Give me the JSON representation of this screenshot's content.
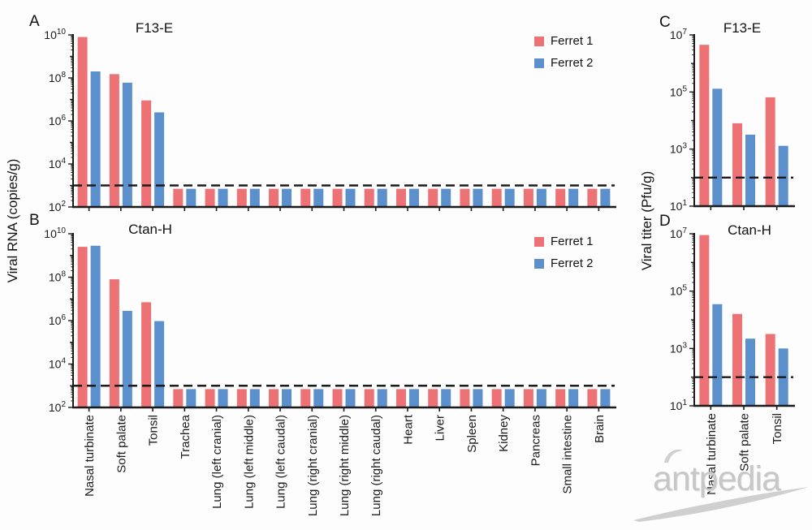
{
  "labels": {
    "y_left": "Viral RNA (copies/g)",
    "y_right": "Viral titer (Pfu/g)"
  },
  "legend": {
    "items": [
      "Ferret 1",
      "Ferret 2"
    ]
  },
  "colors": {
    "series": [
      "#ed7276",
      "#5b90cd"
    ],
    "ink": "#1b1b1b",
    "watermark": "#c7c7c7"
  },
  "watermark": {
    "text": "antpedia"
  },
  "chart_data": [
    {
      "panel": "A",
      "type": "bar",
      "title": "F13-E",
      "ylabel": "Viral RNA (copies/g)",
      "log_scale": true,
      "ylim": [
        100.0,
        10000000000.0
      ],
      "ytick_exponents": [
        2,
        4,
        6,
        8,
        10
      ],
      "detection_limit": 1000.0,
      "show_xlabels": false,
      "show_legend": true,
      "categories": [
        "Nasal turbinate",
        "Soft palate",
        "Tonsil",
        "Trachea",
        "Lung (left cranial)",
        "Lung (left middle)",
        "Lung (left caudal)",
        "Lung (right cranial)",
        "Lung (right middle)",
        "Lung (right caudal)",
        "Heart",
        "Liver",
        "Spleen",
        "Kidney",
        "Pancreas",
        "Small intestine",
        "Brain"
      ],
      "series": [
        {
          "name": "Ferret 1",
          "values": [
            8000000000.0,
            150000000.0,
            9000000.0,
            700.0,
            700.0,
            700.0,
            700.0,
            700.0,
            700.0,
            700.0,
            700.0,
            700.0,
            700.0,
            700.0,
            700.0,
            700.0,
            700.0
          ]
        },
        {
          "name": "Ferret 2",
          "values": [
            200000000.0,
            60000000.0,
            2500000.0,
            700.0,
            700.0,
            700.0,
            700.0,
            700.0,
            700.0,
            700.0,
            700.0,
            700.0,
            700.0,
            700.0,
            700.0,
            700.0,
            700.0
          ]
        }
      ]
    },
    {
      "panel": "B",
      "type": "bar",
      "title": "Ctan-H",
      "ylabel": "Viral RNA (copies/g)",
      "log_scale": true,
      "ylim": [
        100.0,
        10000000000.0
      ],
      "ytick_exponents": [
        2,
        4,
        6,
        8,
        10
      ],
      "detection_limit": 1000.0,
      "show_xlabels": true,
      "show_legend": true,
      "categories": [
        "Nasal turbinate",
        "Soft palate",
        "Tonsil",
        "Trachea",
        "Lung (left cranial)",
        "Lung (left middle)",
        "Lung (left caudal)",
        "Lung (right cranial)",
        "Lung (right middle)",
        "Lung (right caudal)",
        "Heart",
        "Liver",
        "Spleen",
        "Kidney",
        "Pancreas",
        "Small intestine",
        "Brain"
      ],
      "series": [
        {
          "name": "Ferret 1",
          "values": [
            2500000000.0,
            80000000.0,
            7000000.0,
            700.0,
            700.0,
            700.0,
            700.0,
            700.0,
            700.0,
            700.0,
            700.0,
            700.0,
            700.0,
            700.0,
            700.0,
            700.0,
            700.0
          ]
        },
        {
          "name": "Ferret 2",
          "values": [
            2800000000.0,
            2800000.0,
            950000.0,
            700.0,
            700.0,
            700.0,
            700.0,
            700.0,
            700.0,
            700.0,
            700.0,
            700.0,
            700.0,
            700.0,
            700.0,
            700.0,
            700.0
          ]
        }
      ]
    },
    {
      "panel": "C",
      "type": "bar",
      "title": "F13-E",
      "ylabel": "Viral titer (Pfu/g)",
      "log_scale": true,
      "ylim": [
        10.0,
        10000000.0
      ],
      "ytick_exponents": [
        1,
        3,
        5,
        7
      ],
      "detection_limit": 100.0,
      "show_xlabels": false,
      "show_legend": false,
      "categories": [
        "Nasal turbinate",
        "Soft palate",
        "Tonsil"
      ],
      "series": [
        {
          "name": "Ferret 1",
          "values": [
            4500000.0,
            8000.0,
            65000.0
          ]
        },
        {
          "name": "Ferret 2",
          "values": [
            130000.0,
            3200.0,
            1300.0
          ]
        }
      ]
    },
    {
      "panel": "D",
      "type": "bar",
      "title": "Ctan-H",
      "ylabel": "Viral titer (Pfu/g)",
      "log_scale": true,
      "ylim": [
        10.0,
        10000000.0
      ],
      "ytick_exponents": [
        1,
        3,
        5,
        7
      ],
      "detection_limit": 100.0,
      "show_xlabels": true,
      "show_legend": false,
      "categories": [
        "Nasal turbinate",
        "Soft palate",
        "Tonsil"
      ],
      "series": [
        {
          "name": "Ferret 1",
          "values": [
            9000000.0,
            16000.0,
            3200.0
          ]
        },
        {
          "name": "Ferret 2",
          "values": [
            35000.0,
            2200.0,
            1000.0
          ]
        }
      ]
    }
  ]
}
